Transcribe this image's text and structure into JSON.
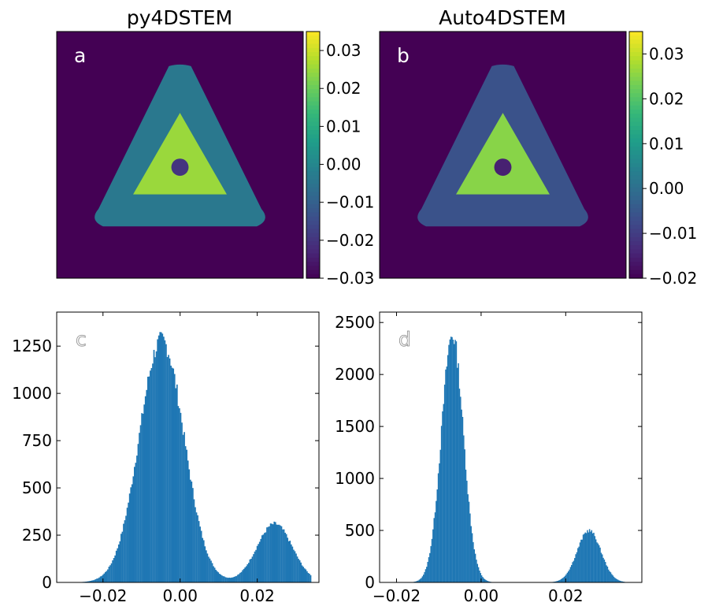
{
  "colors": {
    "hist_bar": "#1f77b4",
    "map_background": "#440154",
    "viridis": [
      "#440154",
      "#482878",
      "#3e4989",
      "#31688e",
      "#26828e",
      "#1f9e89",
      "#35b779",
      "#6ece58",
      "#b5de2b",
      "#fde725"
    ]
  },
  "chart_data": [
    {
      "type": "heatmap",
      "panel": "a",
      "title": "py4DSTEM",
      "colorbar": {
        "colormap": "viridis",
        "range": [
          -0.03,
          0.035
        ],
        "ticks": [
          "0.03",
          "0.02",
          "0.01",
          "0.00",
          "−0.01",
          "−0.02",
          "−0.03"
        ]
      },
      "regions": {
        "background": -0.03,
        "outer_triangle": -0.004,
        "inner_triangle": 0.025,
        "hole": -0.02
      }
    },
    {
      "type": "heatmap",
      "panel": "b",
      "title": "Auto4DSTEM",
      "colorbar": {
        "colormap": "viridis",
        "range": [
          -0.02,
          0.035
        ],
        "ticks": [
          "0.03",
          "0.02",
          "0.01",
          "0.00",
          "−0.01",
          "−0.02"
        ]
      },
      "regions": {
        "background": -0.02,
        "outer_triangle": -0.006,
        "inner_triangle": 0.025,
        "hole": -0.015
      }
    },
    {
      "type": "bar",
      "subtype": "histogram",
      "panel": "c",
      "xlim": [
        -0.032,
        0.036
      ],
      "ylim": [
        0,
        1430
      ],
      "xticks": [
        "−0.02",
        "0.00",
        "0.02"
      ],
      "yticks": [
        "0",
        "250",
        "500",
        "750",
        "1000",
        "1250"
      ],
      "x_range": [
        -0.029,
        0.034
      ],
      "components": [
        {
          "center": -0.0048,
          "sigma": 0.0058,
          "peak": 1280
        },
        {
          "center": 0.0245,
          "sigma": 0.0046,
          "peak": 310
        }
      ]
    },
    {
      "type": "bar",
      "subtype": "histogram",
      "panel": "d",
      "xlim": [
        -0.024,
        0.038
      ],
      "ylim": [
        0,
        2600
      ],
      "xticks": [
        "−0.02",
        "0.00",
        "0.02"
      ],
      "yticks": [
        "0",
        "500",
        "1000",
        "1500",
        "2000",
        "2500"
      ],
      "x_range": [
        -0.016,
        0.034
      ],
      "components": [
        {
          "center": -0.0068,
          "sigma": 0.0026,
          "peak": 2380
        },
        {
          "center": 0.0255,
          "sigma": 0.0028,
          "peak": 500
        }
      ]
    }
  ]
}
